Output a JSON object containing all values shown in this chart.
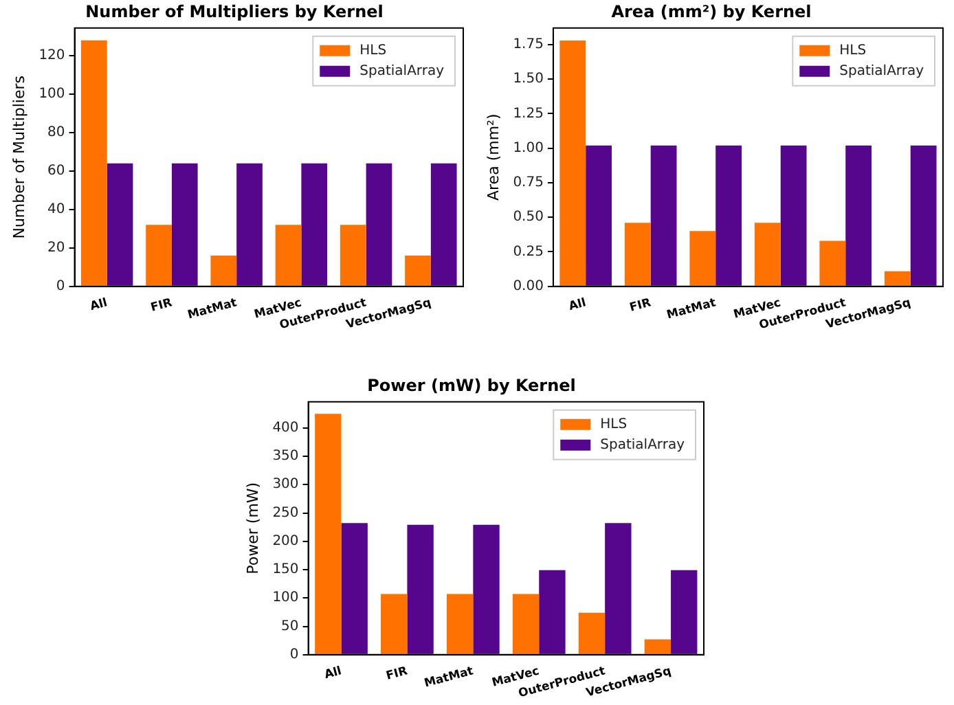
{
  "chart_data": [
    {
      "type": "bar",
      "title": "Number of Multipliers by Kernel",
      "ylabel": "Number of Multipliers",
      "categories": [
        "All",
        "FIR",
        "MatMat",
        "MatVec",
        "OuterProduct",
        "VectorMagSq"
      ],
      "series": [
        {
          "name": "HLS",
          "color": "#ff7100",
          "values": [
            128,
            32,
            16,
            32,
            32,
            16
          ]
        },
        {
          "name": "SpatialArray",
          "color": "#56068c",
          "values": [
            64,
            64,
            64,
            64,
            64,
            64
          ]
        }
      ],
      "ylim": [
        0,
        134.4
      ],
      "yticks": [
        0,
        20,
        40,
        60,
        80,
        100,
        120
      ],
      "grid": false,
      "legend": "top right"
    },
    {
      "type": "bar",
      "title": "Area (mm²) by Kernel",
      "ylabel": "Area (mm²)",
      "categories": [
        "All",
        "FIR",
        "MatMat",
        "MatVec",
        "OuterProduct",
        "VectorMagSq"
      ],
      "series": [
        {
          "name": "HLS",
          "color": "#ff7100",
          "values": [
            1.78,
            0.46,
            0.4,
            0.46,
            0.33,
            0.11
          ]
        },
        {
          "name": "SpatialArray",
          "color": "#56068c",
          "values": [
            1.02,
            1.02,
            1.02,
            1.02,
            1.02,
            1.02
          ]
        }
      ],
      "ylim": [
        0,
        1.87
      ],
      "yticks": [
        {
          "value": 0,
          "label": "0.00"
        },
        {
          "value": 0.25,
          "label": "0.25"
        },
        {
          "value": 0.5,
          "label": "0.50"
        },
        {
          "value": 0.75,
          "label": "0.75"
        },
        {
          "value": 1,
          "label": "1.00"
        },
        {
          "value": 1.25,
          "label": "1.25"
        },
        {
          "value": 1.5,
          "label": "1.50"
        },
        {
          "value": 1.75,
          "label": "1.75"
        }
      ],
      "grid": false,
      "legend": "top right"
    },
    {
      "type": "bar",
      "title": "Power (mW) by Kernel",
      "ylabel": "Power (mW)",
      "categories": [
        "All",
        "FIR",
        "MatMat",
        "MatVec",
        "OuterProduct",
        "VectorMagSq"
      ],
      "series": [
        {
          "name": "HLS",
          "color": "#ff7100",
          "values": [
            425,
            107,
            107,
            107,
            74,
            27
          ]
        },
        {
          "name": "SpatialArray",
          "color": "#56068c",
          "values": [
            232,
            229,
            229,
            149,
            232,
            149
          ]
        }
      ],
      "ylim": [
        0,
        446
      ],
      "yticks": [
        0,
        50,
        100,
        150,
        200,
        250,
        300,
        350,
        400
      ],
      "grid": false,
      "legend": "top right"
    }
  ]
}
